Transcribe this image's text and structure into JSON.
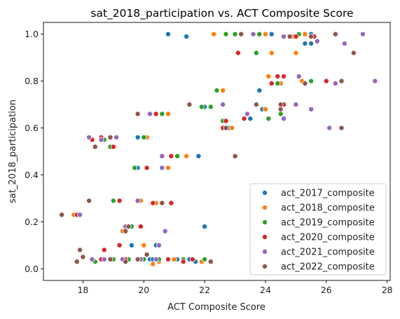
{
  "chart_data": {
    "type": "scatter",
    "title": "sat_2018_participation vs. ACT Composite Score",
    "xlabel": "ACT Composite Score",
    "ylabel": "sat_2018_participation",
    "xlim": [
      16.7,
      28.1
    ],
    "ylim": [
      -0.05,
      1.05
    ],
    "xticks": [
      "18",
      "20",
      "22",
      "24",
      "26",
      "28"
    ],
    "yticks": [
      "0.0",
      "0.2",
      "0.4",
      "0.6",
      "0.8",
      "1.0"
    ],
    "grid": false,
    "legend_position": "lower right",
    "series": [
      {
        "name": "act_2017_composite",
        "color": "#1f77b4",
        "points": [
          [
            20.8,
            1.0
          ],
          [
            21.4,
            0.99
          ],
          [
            23.8,
            1.0
          ],
          [
            24.2,
            1.0
          ],
          [
            25.5,
            1.0
          ],
          [
            25.3,
            0.96
          ],
          [
            24.2,
            0.92
          ],
          [
            19.8,
            0.43
          ],
          [
            19.8,
            0.56
          ],
          [
            20.4,
            0.1
          ],
          [
            19.8,
            0.29
          ],
          [
            20.2,
            0.04
          ],
          [
            21.1,
            0.04
          ],
          [
            21.7,
            0.03
          ],
          [
            21.5,
            0.04
          ],
          [
            22.0,
            0.18
          ],
          [
            21.8,
            0.48
          ],
          [
            22.0,
            0.69
          ],
          [
            22.8,
            0.6
          ],
          [
            23.5,
            0.64
          ],
          [
            23.8,
            0.76
          ],
          [
            24.2,
            0.79
          ],
          [
            23.9,
            0.68
          ],
          [
            24.5,
            0.7
          ],
          [
            25.2,
            0.8
          ],
          [
            25.5,
            0.96
          ],
          [
            19.6,
            0.1
          ],
          [
            20.3,
            0.04
          ],
          [
            21.9,
            0.03
          ],
          [
            23.4,
            0.66
          ]
        ]
      },
      {
        "name": "act_2018_composite",
        "color": "#ff7f0e",
        "points": [
          [
            17.7,
            0.23
          ],
          [
            19.0,
            0.52
          ],
          [
            20.1,
            0.56
          ],
          [
            20.8,
            0.66
          ],
          [
            20.8,
            0.43
          ],
          [
            21.4,
            0.48
          ],
          [
            20.4,
            0.28
          ],
          [
            22.3,
            1.0
          ],
          [
            22.6,
            0.76
          ],
          [
            24.2,
            0.92
          ],
          [
            24.0,
            1.0
          ],
          [
            25.3,
            1.0
          ],
          [
            25.2,
            0.8
          ],
          [
            24.1,
            0.82
          ],
          [
            23.7,
            0.7
          ],
          [
            22.9,
            0.6
          ],
          [
            24.0,
            0.68
          ],
          [
            24.9,
            0.99
          ],
          [
            18.9,
            0.52
          ],
          [
            20.0,
            0.1
          ],
          [
            20.5,
            0.03
          ],
          [
            21.0,
            0.04
          ],
          [
            21.9,
            0.03
          ],
          [
            20.3,
            0.02
          ],
          [
            19.3,
            0.16
          ],
          [
            19.9,
            0.29
          ],
          [
            18.7,
            0.04
          ],
          [
            24.5,
            0.79
          ],
          [
            25.0,
            0.92
          ],
          [
            22.7,
            0.63
          ]
        ]
      },
      {
        "name": "act_2019_composite",
        "color": "#2ca02c",
        "points": [
          [
            19.0,
            0.29
          ],
          [
            19.7,
            0.43
          ],
          [
            20.0,
            0.56
          ],
          [
            20.6,
            0.66
          ],
          [
            21.1,
            0.48
          ],
          [
            21.5,
            0.7
          ],
          [
            21.9,
            0.69
          ],
          [
            22.2,
            0.69
          ],
          [
            22.4,
            0.76
          ],
          [
            22.6,
            0.6
          ],
          [
            22.6,
            0.63
          ],
          [
            22.7,
            1.0
          ],
          [
            23.0,
            1.0
          ],
          [
            23.8,
            1.0
          ],
          [
            25.5,
            0.8
          ],
          [
            24.1,
            0.64
          ],
          [
            23.7,
            0.92
          ],
          [
            24.4,
            0.79
          ],
          [
            18.9,
            0.52
          ],
          [
            18.7,
            0.55
          ],
          [
            20.5,
            0.04
          ],
          [
            19.5,
            0.04
          ],
          [
            19.0,
            0.04
          ],
          [
            18.4,
            0.03
          ],
          [
            19.6,
            0.18
          ],
          [
            21.3,
            0.04
          ],
          [
            22.0,
            0.04
          ],
          [
            25.1,
            1.0
          ],
          [
            24.5,
            0.66
          ],
          [
            20.0,
            0.04
          ]
        ]
      },
      {
        "name": "act_2020_composite",
        "color": "#d62728",
        "points": [
          [
            17.8,
            0.23
          ],
          [
            18.3,
            0.55
          ],
          [
            19.2,
            0.29
          ],
          [
            20.1,
            0.43
          ],
          [
            20.9,
            0.48
          ],
          [
            20.9,
            0.28
          ],
          [
            19.9,
            0.18
          ],
          [
            18.6,
            0.04
          ],
          [
            18.7,
            0.08
          ],
          [
            19.4,
            0.04
          ],
          [
            19.2,
            0.1
          ],
          [
            21.6,
            0.04
          ],
          [
            21.3,
            0.03
          ],
          [
            22.7,
            0.63
          ],
          [
            23.1,
            0.92
          ],
          [
            23.3,
            0.64
          ],
          [
            24.4,
            0.82
          ],
          [
            24.2,
            0.79
          ],
          [
            24.6,
            0.82
          ],
          [
            25.0,
            0.99
          ],
          [
            26.0,
            0.8
          ],
          [
            23.6,
            1.0
          ],
          [
            24.6,
            0.7
          ],
          [
            20.4,
            0.66
          ],
          [
            22.6,
            0.6
          ],
          [
            19.0,
            0.52
          ],
          [
            18.6,
            0.56
          ],
          [
            20.3,
            0.28
          ],
          [
            20.8,
            0.04
          ],
          [
            25.6,
            0.99
          ]
        ]
      },
      {
        "name": "act_2021_composite",
        "color": "#9467bd",
        "points": [
          [
            17.9,
            0.23
          ],
          [
            18.2,
            0.56
          ],
          [
            18.6,
            0.55
          ],
          [
            19.1,
            0.56
          ],
          [
            19.8,
            0.29
          ],
          [
            20.2,
            0.66
          ],
          [
            20.6,
            0.48
          ],
          [
            20.6,
            0.43
          ],
          [
            20.7,
            0.16
          ],
          [
            20.4,
            0.04
          ],
          [
            19.3,
            0.04
          ],
          [
            18.7,
            0.04
          ],
          [
            18.3,
            0.04
          ],
          [
            19.4,
            0.18
          ],
          [
            19.9,
            0.04
          ],
          [
            20.5,
            0.1
          ],
          [
            22.6,
            0.7
          ],
          [
            23.6,
            1.0
          ],
          [
            23.4,
            0.66
          ],
          [
            24.6,
            0.64
          ],
          [
            25.0,
            0.7
          ],
          [
            25.1,
            0.82
          ],
          [
            25.5,
            0.68
          ],
          [
            26.1,
            0.6
          ],
          [
            26.3,
            0.79
          ],
          [
            26.6,
            0.96
          ],
          [
            27.2,
            1.0
          ],
          [
            27.6,
            0.8
          ],
          [
            25.7,
            0.97
          ],
          [
            24.6,
            0.99
          ]
        ]
      },
      {
        "name": "act_2022_composite",
        "color": "#8c564b",
        "points": [
          [
            17.3,
            0.23
          ],
          [
            17.8,
            0.03
          ],
          [
            17.9,
            0.08
          ],
          [
            18.0,
            0.05
          ],
          [
            18.2,
            0.29
          ],
          [
            18.4,
            0.52
          ],
          [
            18.9,
            0.56
          ],
          [
            19.4,
            0.03
          ],
          [
            19.4,
            0.16
          ],
          [
            19.5,
            0.18
          ],
          [
            19.8,
            0.66
          ],
          [
            20.1,
            0.06
          ],
          [
            20.6,
            0.28
          ],
          [
            21.5,
            0.7
          ],
          [
            22.2,
            0.03
          ],
          [
            22.7,
            0.6
          ],
          [
            23.0,
            0.48
          ],
          [
            23.2,
            1.0
          ],
          [
            23.7,
            0.7
          ],
          [
            24.5,
            0.68
          ],
          [
            24.5,
            0.7
          ],
          [
            24.8,
            0.99
          ],
          [
            25.5,
            0.99
          ],
          [
            25.3,
            0.79
          ],
          [
            26.3,
            1.0
          ],
          [
            26.5,
            0.6
          ],
          [
            26.5,
            0.8
          ],
          [
            26.9,
            0.92
          ],
          [
            18.9,
            0.04
          ],
          [
            19.8,
            0.04
          ]
        ]
      }
    ]
  }
}
